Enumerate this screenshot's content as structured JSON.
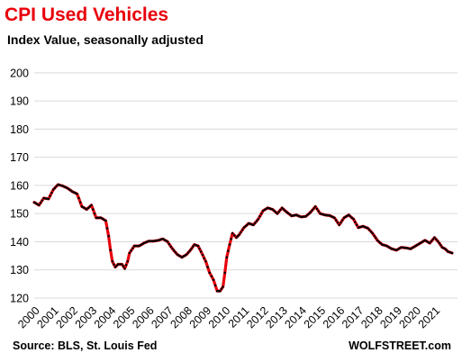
{
  "header": {
    "title": "CPI Used Vehicles",
    "subtitle": "Index Value, seasonally adjusted"
  },
  "footer": {
    "source": "Source: BLS, St. Louis Fed",
    "brand": "WOLFSTREET.com"
  },
  "colors": {
    "title": "#e8000b",
    "line": "#e8000b",
    "markers": "#000000",
    "grid": "#d9d9d9"
  },
  "chart_data": {
    "type": "line",
    "title": "CPI Used Vehicles",
    "subtitle": "Index Value, seasonally adjusted",
    "xlabel": "",
    "ylabel": "",
    "x_range": [
      2000,
      2021.92
    ],
    "ylim": [
      120,
      205
    ],
    "y_ticks": [
      120,
      130,
      140,
      150,
      160,
      170,
      180,
      190,
      200
    ],
    "x_tick_labels": [
      "2000",
      "2001",
      "2002",
      "2003",
      "2004",
      "2005",
      "2006",
      "2007",
      "2008",
      "2009",
      "2010",
      "2011",
      "2012",
      "2013",
      "2014",
      "2015",
      "2016",
      "2017",
      "2018",
      "2019",
      "2020",
      "2021"
    ],
    "grid": "horizontal",
    "legend": "none",
    "markers": true,
    "series": [
      {
        "values": [
          [
            2000.0,
            154.0
          ],
          [
            2000.25,
            153.0
          ],
          [
            2000.5,
            155.5
          ],
          [
            2000.75,
            155.2
          ],
          [
            2001.0,
            158.5
          ],
          [
            2001.25,
            160.3
          ],
          [
            2001.5,
            159.8
          ],
          [
            2001.75,
            159.0
          ],
          [
            2002.0,
            157.8
          ],
          [
            2002.25,
            157.0
          ],
          [
            2002.5,
            152.5
          ],
          [
            2002.75,
            151.5
          ],
          [
            2003.0,
            153.0
          ],
          [
            2003.25,
            148.5
          ],
          [
            2003.5,
            148.5
          ],
          [
            2003.75,
            147.5
          ],
          [
            2003.9,
            142.0
          ],
          [
            2004.0,
            137.0
          ],
          [
            2004.1,
            133.0
          ],
          [
            2004.25,
            131.0
          ],
          [
            2004.4,
            132.0
          ],
          [
            2004.6,
            132.0
          ],
          [
            2004.75,
            130.5
          ],
          [
            2004.9,
            133.0
          ],
          [
            2005.0,
            136.0
          ],
          [
            2005.25,
            138.5
          ],
          [
            2005.5,
            138.5
          ],
          [
            2005.75,
            139.5
          ],
          [
            2006.0,
            140.2
          ],
          [
            2006.25,
            140.2
          ],
          [
            2006.5,
            140.5
          ],
          [
            2006.75,
            141.0
          ],
          [
            2007.0,
            140.0
          ],
          [
            2007.25,
            137.5
          ],
          [
            2007.5,
            135.5
          ],
          [
            2007.75,
            134.5
          ],
          [
            2008.0,
            135.5
          ],
          [
            2008.25,
            137.5
          ],
          [
            2008.4,
            139.0
          ],
          [
            2008.6,
            138.5
          ],
          [
            2008.75,
            136.5
          ],
          [
            2009.0,
            133.0
          ],
          [
            2009.2,
            129.0
          ],
          [
            2009.4,
            126.5
          ],
          [
            2009.6,
            122.5
          ],
          [
            2009.75,
            122.5
          ],
          [
            2009.9,
            124.0
          ],
          [
            2010.0,
            129.0
          ],
          [
            2010.1,
            134.5
          ],
          [
            2010.25,
            139.0
          ],
          [
            2010.4,
            143.0
          ],
          [
            2010.6,
            141.5
          ],
          [
            2010.75,
            142.5
          ],
          [
            2011.0,
            145.0
          ],
          [
            2011.25,
            146.5
          ],
          [
            2011.5,
            146.0
          ],
          [
            2011.75,
            148.0
          ],
          [
            2012.0,
            151.0
          ],
          [
            2012.25,
            152.0
          ],
          [
            2012.5,
            151.5
          ],
          [
            2012.75,
            150.0
          ],
          [
            2013.0,
            152.0
          ],
          [
            2013.25,
            150.5
          ],
          [
            2013.5,
            149.2
          ],
          [
            2013.75,
            149.5
          ],
          [
            2014.0,
            148.8
          ],
          [
            2014.25,
            149.0
          ],
          [
            2014.5,
            150.5
          ],
          [
            2014.75,
            152.5
          ],
          [
            2015.0,
            150.0
          ],
          [
            2015.25,
            149.5
          ],
          [
            2015.5,
            149.3
          ],
          [
            2015.75,
            148.5
          ],
          [
            2016.0,
            146.0
          ],
          [
            2016.25,
            148.5
          ],
          [
            2016.5,
            149.5
          ],
          [
            2016.75,
            148.0
          ],
          [
            2017.0,
            145.0
          ],
          [
            2017.25,
            145.5
          ],
          [
            2017.5,
            144.8
          ],
          [
            2017.75,
            143.0
          ],
          [
            2018.0,
            140.5
          ],
          [
            2018.25,
            139.0
          ],
          [
            2018.5,
            138.5
          ],
          [
            2018.75,
            137.5
          ],
          [
            2019.0,
            137.0
          ],
          [
            2019.25,
            138.0
          ],
          [
            2019.5,
            137.8
          ],
          [
            2019.75,
            137.5
          ],
          [
            2020.0,
            138.5
          ],
          [
            2020.25,
            139.5
          ],
          [
            2020.5,
            140.5
          ],
          [
            2020.75,
            139.5
          ],
          [
            2021.0,
            141.5
          ],
          [
            2021.25,
            139.5
          ],
          [
            2021.4,
            138.0
          ],
          [
            2021.55,
            137.5
          ],
          [
            2021.7,
            136.5
          ],
          [
            2021.92,
            136.0
          ]
        ]
      }
    ]
  }
}
